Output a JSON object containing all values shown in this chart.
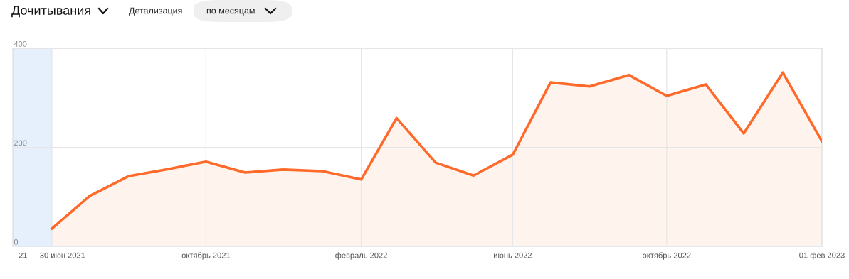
{
  "chart_data": {
    "type": "area",
    "title": "Дочитывания",
    "annotations": [
      "Детализация",
      "по месяцам"
    ],
    "x": [
      "2021-06",
      "2021-07",
      "2021-08",
      "2021-09",
      "2021-10",
      "2021-11",
      "2021-12",
      "2022-01",
      "2022-02",
      "2022-03",
      "2022-04",
      "2022-05",
      "2022-06",
      "2022-07",
      "2022-08",
      "2022-09",
      "2022-10",
      "2022-11",
      "2022-12",
      "2023-01",
      "2023-02"
    ],
    "series": [
      {
        "color": "#ff6a2b",
        "values": [
          36,
          102,
          142,
          156,
          171,
          149,
          155,
          152,
          135,
          259,
          169,
          143,
          185,
          331,
          323,
          346,
          304,
          327,
          228,
          351,
          212
        ]
      }
    ],
    "xlim": [
      "2021-05",
      "2023-02"
    ],
    "xticks": [
      {
        "value": "2021-06",
        "label": "21 — 30 июн 2021"
      },
      {
        "value": "2021-10",
        "label": "октябрь 2021"
      },
      {
        "value": "2022-02",
        "label": "февраль 2022"
      },
      {
        "value": "2022-06",
        "label": "июнь 2022"
      },
      {
        "value": "2022-10",
        "label": "октябрь 2022"
      },
      {
        "value": "2023-02",
        "label": "01 фев 2023"
      }
    ],
    "ylim": [
      0,
      400
    ],
    "yticks": [
      0,
      200,
      400
    ],
    "bands": [
      {
        "axis": "x",
        "from": "2021-05",
        "to": "2021-06",
        "color": "#e5f0fc"
      }
    ],
    "grid": true,
    "legend": false
  }
}
